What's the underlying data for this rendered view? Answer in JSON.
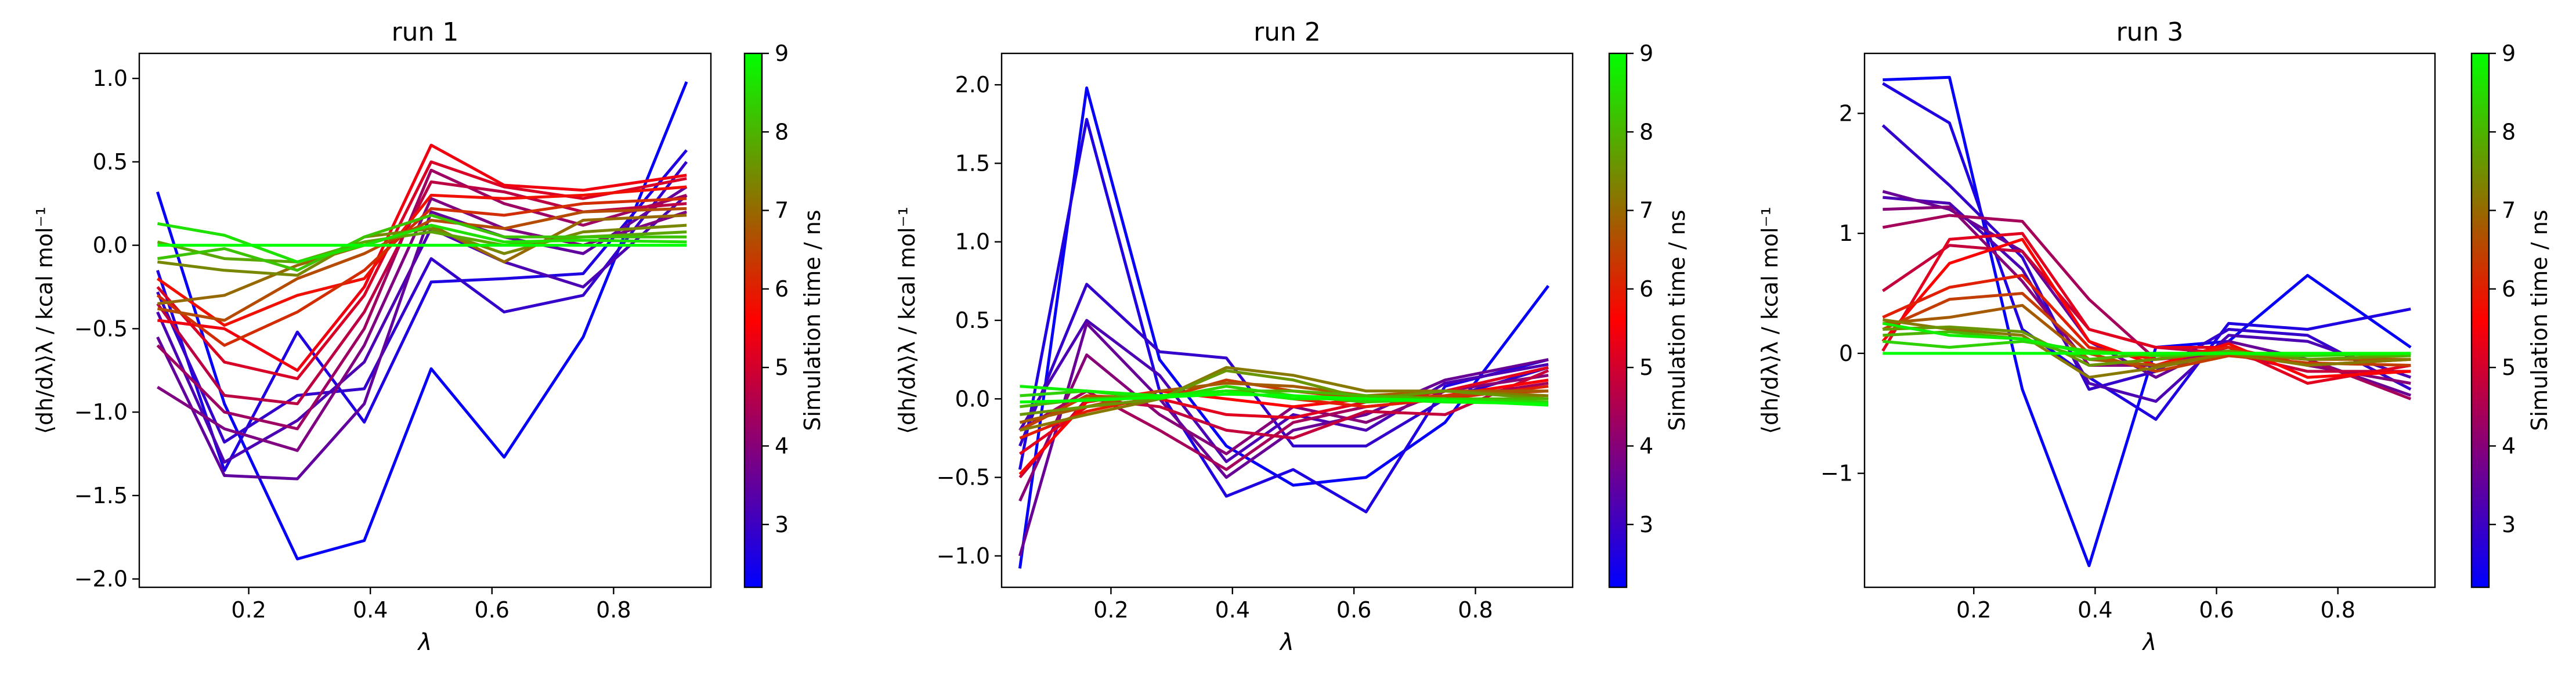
{
  "chart_data": [
    {
      "type": "line",
      "title": "run 1",
      "xlabel": "λ",
      "ylabel": "⟨dh/dλ⟩λ / kcal mol⁻¹",
      "xlim": [
        0.02,
        0.96
      ],
      "ylim": [
        -2.05,
        1.15
      ],
      "xticks": [
        0.2,
        0.4,
        0.6,
        0.8
      ],
      "xtick_labels": [
        "0.2",
        "0.4",
        "0.6",
        "0.8"
      ],
      "yticks": [
        -2.0,
        -1.5,
        -1.0,
        -0.5,
        0.0,
        0.5,
        1.0
      ],
      "ytick_labels": [
        "−2.0",
        "−1.5",
        "−1.0",
        "−0.5",
        "0.0",
        "0.5",
        "1.0"
      ],
      "x": [
        0.05,
        0.16,
        0.28,
        0.39,
        0.5,
        0.62,
        0.75,
        0.92
      ],
      "colorbar": {
        "label": "Simulation time / ns",
        "range": [
          2.2,
          9.0
        ],
        "ticks": [
          3,
          4,
          5,
          6,
          7,
          8,
          9
        ],
        "colormap": [
          "#0000ff",
          "#ff0000",
          "#00ff00"
        ]
      },
      "series": [
        {
          "t": 2.3,
          "values": [
            0.32,
            -0.95,
            -1.88,
            -1.77,
            -0.74,
            -1.27,
            -0.55,
            0.98
          ]
        },
        {
          "t": 2.6,
          "values": [
            -0.15,
            -1.35,
            -0.52,
            -1.06,
            -0.22,
            -0.2,
            -0.17,
            0.57
          ]
        },
        {
          "t": 2.9,
          "values": [
            -0.28,
            -1.18,
            -0.9,
            -0.86,
            -0.08,
            -0.4,
            -0.3,
            0.5
          ]
        },
        {
          "t": 3.2,
          "values": [
            -0.4,
            -1.3,
            -1.05,
            -0.7,
            0.1,
            -0.1,
            -0.25,
            0.3
          ]
        },
        {
          "t": 3.5,
          "values": [
            -0.55,
            -1.38,
            -1.4,
            -0.95,
            0.2,
            0.05,
            -0.05,
            0.35
          ]
        },
        {
          "t": 3.9,
          "values": [
            -0.85,
            -1.1,
            -1.23,
            -0.6,
            0.28,
            0.1,
            0.0,
            0.2
          ]
        },
        {
          "t": 4.3,
          "values": [
            -0.6,
            -1.0,
            -1.1,
            -0.5,
            0.45,
            0.25,
            0.12,
            0.3
          ]
        },
        {
          "t": 4.7,
          "values": [
            -0.35,
            -0.9,
            -0.95,
            -0.4,
            0.38,
            0.32,
            0.2,
            0.25
          ]
        },
        {
          "t": 5.1,
          "values": [
            -0.25,
            -0.7,
            -0.8,
            -0.3,
            0.5,
            0.35,
            0.28,
            0.4
          ]
        },
        {
          "t": 5.4,
          "values": [
            -0.45,
            -0.5,
            -0.75,
            -0.25,
            0.6,
            0.36,
            0.33,
            0.42
          ]
        },
        {
          "t": 5.8,
          "values": [
            -0.2,
            -0.48,
            -0.3,
            -0.2,
            0.3,
            0.28,
            0.3,
            0.35
          ]
        },
        {
          "t": 6.2,
          "values": [
            -0.3,
            -0.6,
            -0.4,
            -0.15,
            0.22,
            0.18,
            0.25,
            0.28
          ]
        },
        {
          "t": 6.6,
          "values": [
            -0.38,
            -0.45,
            -0.2,
            -0.05,
            0.15,
            0.1,
            0.2,
            0.22
          ]
        },
        {
          "t": 7.0,
          "values": [
            -0.35,
            -0.3,
            -0.12,
            0.0,
            0.12,
            -0.1,
            0.15,
            0.18
          ]
        },
        {
          "t": 7.4,
          "values": [
            -0.1,
            -0.15,
            -0.18,
            0.05,
            0.1,
            -0.05,
            0.08,
            0.12
          ]
        },
        {
          "t": 7.8,
          "values": [
            0.02,
            -0.08,
            -0.1,
            0.02,
            0.08,
            0.0,
            0.05,
            0.08
          ]
        },
        {
          "t": 8.2,
          "values": [
            -0.08,
            -0.02,
            -0.15,
            0.05,
            0.18,
            0.05,
            0.05,
            0.05
          ]
        },
        {
          "t": 8.6,
          "values": [
            0.13,
            0.06,
            -0.1,
            0.0,
            0.12,
            0.02,
            0.03,
            0.02
          ]
        },
        {
          "t": 9.0,
          "values": [
            0.0,
            0.0,
            0.0,
            0.0,
            0.0,
            0.0,
            0.0,
            0.0
          ]
        }
      ]
    },
    {
      "type": "line",
      "title": "run 2",
      "xlabel": "λ",
      "ylabel": "⟨dh/dλ⟩λ / kcal mol⁻¹",
      "xlim": [
        0.02,
        0.96
      ],
      "ylim": [
        -1.2,
        2.2
      ],
      "xticks": [
        0.2,
        0.4,
        0.6,
        0.8
      ],
      "xtick_labels": [
        "0.2",
        "0.4",
        "0.6",
        "0.8"
      ],
      "yticks": [
        -1.0,
        -0.5,
        0.0,
        0.5,
        1.0,
        1.5,
        2.0
      ],
      "ytick_labels": [
        "−1.0",
        "−0.5",
        "0.0",
        "0.5",
        "1.0",
        "1.5",
        "2.0"
      ],
      "x": [
        0.05,
        0.16,
        0.28,
        0.39,
        0.5,
        0.62,
        0.75,
        0.92
      ],
      "colorbar": {
        "label": "Simulation time / ns",
        "range": [
          2.2,
          9.0
        ],
        "ticks": [
          3,
          4,
          5,
          6,
          7,
          8,
          9
        ],
        "colormap": [
          "#0000ff",
          "#ff0000",
          "#00ff00"
        ]
      },
      "series": [
        {
          "t": 2.3,
          "values": [
            -1.08,
            1.98,
            0.25,
            -0.3,
            -0.55,
            -0.5,
            -0.15,
            0.72
          ]
        },
        {
          "t": 2.6,
          "values": [
            -0.45,
            1.78,
            0.05,
            -0.62,
            -0.45,
            -0.72,
            0.08,
            0.25
          ]
        },
        {
          "t": 2.9,
          "values": [
            -0.3,
            0.73,
            0.3,
            0.26,
            -0.3,
            -0.3,
            0.0,
            0.2
          ]
        },
        {
          "t": 3.2,
          "values": [
            -0.2,
            0.5,
            0.15,
            -0.4,
            -0.1,
            -0.2,
            0.1,
            0.22
          ]
        },
        {
          "t": 3.6,
          "values": [
            -1.0,
            0.48,
            0.0,
            -0.5,
            -0.2,
            -0.1,
            0.12,
            0.25
          ]
        },
        {
          "t": 4.0,
          "values": [
            -0.65,
            0.28,
            -0.1,
            -0.35,
            -0.05,
            -0.15,
            0.05,
            0.15
          ]
        },
        {
          "t": 4.4,
          "values": [
            -0.2,
            0.05,
            -0.2,
            -0.45,
            -0.15,
            -0.05,
            0.0,
            0.1
          ]
        },
        {
          "t": 4.8,
          "values": [
            -0.5,
            0.0,
            -0.05,
            -0.2,
            -0.25,
            -0.08,
            -0.1,
            0.18
          ]
        },
        {
          "t": 5.2,
          "values": [
            -0.35,
            -0.05,
            0.0,
            -0.1,
            -0.12,
            -0.02,
            0.05,
            0.2
          ]
        },
        {
          "t": 5.6,
          "values": [
            -0.48,
            -0.02,
            0.05,
            0.0,
            -0.05,
            0.0,
            0.02,
            0.12
          ]
        },
        {
          "t": 6.0,
          "values": [
            -0.25,
            -0.08,
            0.02,
            0.05,
            0.0,
            -0.05,
            0.0,
            0.08
          ]
        },
        {
          "t": 6.4,
          "values": [
            -0.2,
            0.02,
            0.0,
            0.12,
            0.05,
            0.0,
            0.02,
            0.05
          ]
        },
        {
          "t": 6.8,
          "values": [
            -0.15,
            -0.05,
            0.05,
            0.1,
            0.08,
            0.02,
            0.05,
            0.05
          ]
        },
        {
          "t": 7.2,
          "values": [
            -0.2,
            -0.1,
            0.0,
            0.2,
            0.15,
            0.05,
            0.05,
            0.02
          ]
        },
        {
          "t": 7.6,
          "values": [
            -0.1,
            -0.05,
            0.0,
            0.18,
            0.12,
            0.0,
            0.05,
            0.0
          ]
        },
        {
          "t": 8.0,
          "values": [
            -0.05,
            0.0,
            0.02,
            0.05,
            0.05,
            0.02,
            0.0,
            0.0
          ]
        },
        {
          "t": 8.4,
          "values": [
            0.02,
            0.05,
            0.0,
            0.08,
            0.02,
            -0.02,
            0.0,
            -0.02
          ]
        },
        {
          "t": 8.8,
          "values": [
            0.08,
            0.05,
            0.02,
            0.05,
            0.0,
            0.0,
            -0.02,
            -0.03
          ]
        },
        {
          "t": 9.0,
          "values": [
            -0.02,
            -0.01,
            0.01,
            0.03,
            0.02,
            0.0,
            -0.01,
            -0.04
          ]
        }
      ]
    },
    {
      "type": "line",
      "title": "run 3",
      "xlabel": "λ",
      "ylabel": "⟨dh/dλ⟩λ / kcal mol⁻¹",
      "xlim": [
        0.02,
        0.96
      ],
      "ylim": [
        -1.95,
        2.5
      ],
      "xticks": [
        0.2,
        0.4,
        0.6,
        0.8
      ],
      "xtick_labels": [
        "0.2",
        "0.4",
        "0.6",
        "0.8"
      ],
      "yticks": [
        -1,
        0,
        1,
        2
      ],
      "ytick_labels": [
        "−1",
        "0",
        "1",
        "2"
      ],
      "x": [
        0.05,
        0.16,
        0.28,
        0.39,
        0.5,
        0.62,
        0.75,
        0.92
      ],
      "colorbar": {
        "label": "Simulation time / ns",
        "range": [
          2.2,
          9.0
        ],
        "ticks": [
          3,
          4,
          5,
          6,
          7,
          8,
          9
        ],
        "colormap": [
          "#0000ff",
          "#ff0000",
          "#00ff00"
        ]
      },
      "series": [
        {
          "t": 2.3,
          "values": [
            2.28,
            2.3,
            -0.3,
            -1.77,
            0.05,
            0.1,
            0.65,
            0.05
          ]
        },
        {
          "t": 2.6,
          "values": [
            2.25,
            1.92,
            0.2,
            -0.2,
            -0.55,
            0.25,
            0.2,
            0.37
          ]
        },
        {
          "t": 2.9,
          "values": [
            1.9,
            1.4,
            0.8,
            -0.3,
            -0.15,
            0.2,
            0.15,
            -0.3
          ]
        },
        {
          "t": 3.2,
          "values": [
            1.3,
            1.25,
            0.7,
            -0.25,
            -0.4,
            0.15,
            0.1,
            -0.2
          ]
        },
        {
          "t": 3.6,
          "values": [
            1.35,
            1.2,
            0.85,
            0.1,
            -0.2,
            0.1,
            -0.05,
            -0.35
          ]
        },
        {
          "t": 4.0,
          "values": [
            1.2,
            1.22,
            0.6,
            -0.1,
            -0.1,
            0.05,
            -0.1,
            -0.25
          ]
        },
        {
          "t": 4.4,
          "values": [
            1.05,
            1.15,
            1.1,
            0.45,
            -0.05,
            0.0,
            -0.05,
            -0.38
          ]
        },
        {
          "t": 4.8,
          "values": [
            0.52,
            0.9,
            0.85,
            0.2,
            0.05,
            0.0,
            -0.15,
            -0.15
          ]
        },
        {
          "t": 5.2,
          "values": [
            0.02,
            0.95,
            1.0,
            0.2,
            0.05,
            0.05,
            -0.25,
            -0.1
          ]
        },
        {
          "t": 5.6,
          "values": [
            0.1,
            0.75,
            0.95,
            0.1,
            -0.1,
            0.08,
            -0.2,
            -0.15
          ]
        },
        {
          "t": 6.0,
          "values": [
            0.3,
            0.55,
            0.65,
            0.05,
            -0.05,
            0.05,
            -0.1,
            -0.05
          ]
        },
        {
          "t": 6.4,
          "values": [
            0.2,
            0.45,
            0.5,
            0.0,
            -0.15,
            -0.02,
            -0.08,
            -0.1
          ]
        },
        {
          "t": 6.8,
          "values": [
            0.25,
            0.3,
            0.4,
            -0.05,
            -0.1,
            0.0,
            -0.05,
            -0.05
          ]
        },
        {
          "t": 7.2,
          "values": [
            0.28,
            0.2,
            0.15,
            -0.2,
            -0.12,
            0.0,
            -0.1,
            -0.05
          ]
        },
        {
          "t": 7.6,
          "values": [
            0.2,
            0.22,
            0.18,
            -0.1,
            -0.05,
            0.02,
            -0.05,
            -0.02
          ]
        },
        {
          "t": 8.0,
          "values": [
            0.15,
            0.18,
            0.12,
            -0.05,
            0.0,
            0.0,
            0.0,
            -0.02
          ]
        },
        {
          "t": 8.4,
          "values": [
            0.1,
            0.05,
            0.1,
            0.02,
            -0.02,
            0.0,
            -0.02,
            0.0
          ]
        },
        {
          "t": 8.8,
          "values": [
            0.25,
            0.15,
            0.12,
            0.0,
            0.0,
            0.0,
            0.0,
            0.0
          ]
        },
        {
          "t": 9.0,
          "values": [
            0.0,
            0.0,
            0.0,
            0.0,
            0.0,
            0.0,
            0.0,
            0.0
          ]
        }
      ]
    }
  ]
}
